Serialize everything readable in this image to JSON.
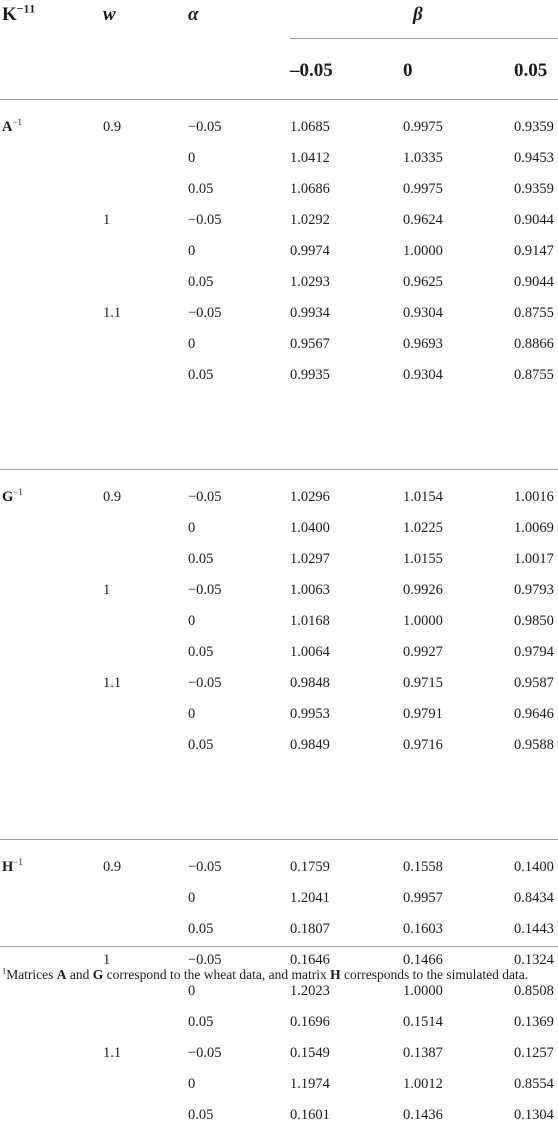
{
  "header": {
    "k": "K",
    "k_exp": "−1",
    "k_note": "1",
    "w": "w",
    "alpha": "α",
    "beta": "β",
    "beta_values": [
      "–0.05",
      "0",
      "0.05"
    ]
  },
  "groups": [
    {
      "matrix": "A",
      "exp": "−1",
      "rows": [
        {
          "w": "0.9",
          "alpha": "−0.05",
          "v": [
            "1.0685",
            "0.9975",
            "0.9359"
          ]
        },
        {
          "w": "",
          "alpha": "0",
          "v": [
            "1.0412",
            "1.0335",
            "0.9453"
          ]
        },
        {
          "w": "",
          "alpha": "0.05",
          "v": [
            "1.0686",
            "0.9975",
            "0.9359"
          ]
        },
        {
          "w": "1",
          "alpha": "−0.05",
          "v": [
            "1.0292",
            "0.9624",
            "0.9044"
          ]
        },
        {
          "w": "",
          "alpha": "0",
          "v": [
            "0.9974",
            "1.0000",
            "0.9147"
          ]
        },
        {
          "w": "",
          "alpha": "0.05",
          "v": [
            "1.0293",
            "0.9625",
            "0.9044"
          ]
        },
        {
          "w": "1.1",
          "alpha": "−0.05",
          "v": [
            "0.9934",
            "0.9304",
            "0.8755"
          ]
        },
        {
          "w": "",
          "alpha": "0",
          "v": [
            "0.9567",
            "0.9693",
            "0.8866"
          ]
        },
        {
          "w": "",
          "alpha": "0.05",
          "v": [
            "0.9935",
            "0.9304",
            "0.8755"
          ]
        }
      ]
    },
    {
      "matrix": "G",
      "exp": "−1",
      "rows": [
        {
          "w": "0.9",
          "alpha": "−0.05",
          "v": [
            "1.0296",
            "1.0154",
            "1.0016"
          ]
        },
        {
          "w": "",
          "alpha": "0",
          "v": [
            "1.0400",
            "1.0225",
            "1.0069"
          ]
        },
        {
          "w": "",
          "alpha": "0.05",
          "v": [
            "1.0297",
            "1.0155",
            "1.0017"
          ]
        },
        {
          "w": "1",
          "alpha": "−0.05",
          "v": [
            "1.0063",
            "0.9926",
            "0.9793"
          ]
        },
        {
          "w": "",
          "alpha": "0",
          "v": [
            "1.0168",
            "1.0000",
            "0.9850"
          ]
        },
        {
          "w": "",
          "alpha": "0.05",
          "v": [
            "1.0064",
            "0.9927",
            "0.9794"
          ]
        },
        {
          "w": "1.1",
          "alpha": "−0.05",
          "v": [
            "0.9848",
            "0.9715",
            "0.9587"
          ]
        },
        {
          "w": "",
          "alpha": "0",
          "v": [
            "0.9953",
            "0.9791",
            "0.9646"
          ]
        },
        {
          "w": "",
          "alpha": "0.05",
          "v": [
            "0.9849",
            "0.9716",
            "0.9588"
          ]
        }
      ]
    },
    {
      "matrix": "H",
      "exp": "−1",
      "rows": [
        {
          "w": "0.9",
          "alpha": "−0.05",
          "v": [
            "0.1759",
            "0.1558",
            "0.1400"
          ]
        },
        {
          "w": "",
          "alpha": "0",
          "v": [
            "1.2041",
            "0.9957",
            "0.8434"
          ]
        },
        {
          "w": "",
          "alpha": "0.05",
          "v": [
            "0.1807",
            "0.1603",
            "0.1443"
          ]
        },
        {
          "w": "1",
          "alpha": "−0.05",
          "v": [
            "0.1646",
            "0.1466",
            "0.1324"
          ]
        },
        {
          "w": "",
          "alpha": "0",
          "v": [
            "1.2023",
            "1.0000",
            "0.8508"
          ]
        },
        {
          "w": "",
          "alpha": "0.05",
          "v": [
            "0.1696",
            "0.1514",
            "0.1369"
          ]
        },
        {
          "w": "1.1",
          "alpha": "−0.05",
          "v": [
            "0.1549",
            "0.1387",
            "0.1257"
          ]
        },
        {
          "w": "",
          "alpha": "0",
          "v": [
            "1.1974",
            "1.0012",
            "0.8554"
          ]
        },
        {
          "w": "",
          "alpha": "0.05",
          "v": [
            "0.1601",
            "0.1436",
            "0.1304"
          ]
        }
      ]
    }
  ],
  "footnote": {
    "mark": "1",
    "t1": "Matrices ",
    "a": "A",
    "t2": " and ",
    "g": "G",
    "t3": " correspond to the wheat data, and matrix ",
    "h": "H",
    "t4": " corresponds to the simulated data."
  }
}
